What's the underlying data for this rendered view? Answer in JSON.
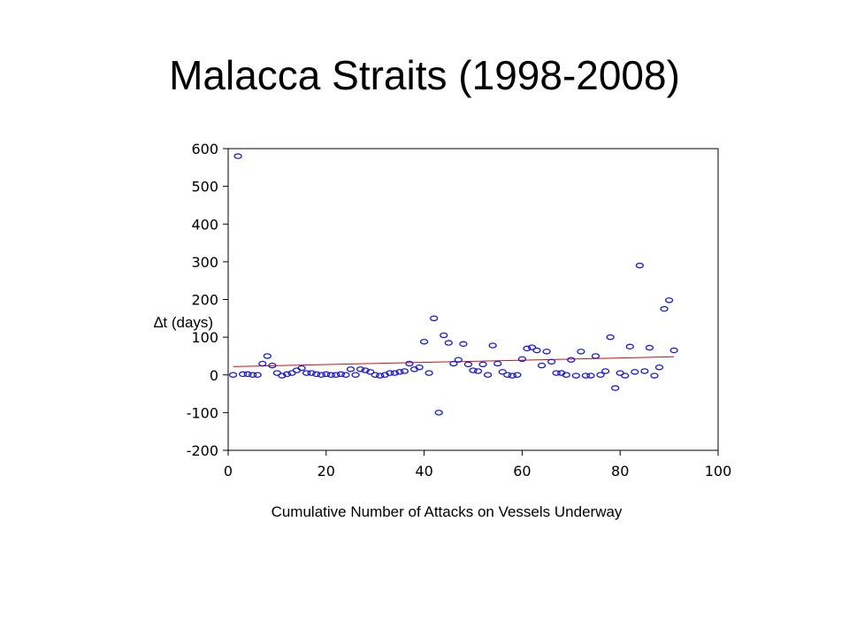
{
  "slide": {
    "title": "Malacca Straits (1998-2008)"
  },
  "colors": {
    "marker": "#1a1acc",
    "trend": "#cc1111",
    "frame": "#000000"
  },
  "chart_data": {
    "type": "scatter",
    "title": "",
    "xlabel": "Cumulative Number of Attacks on Vessels Underway",
    "ylabel": "∆t (days)",
    "xlim": [
      0,
      100
    ],
    "ylim": [
      -200,
      600
    ],
    "xticks": [
      0,
      20,
      40,
      60,
      80,
      100
    ],
    "yticks": [
      600,
      500,
      400,
      300,
      200,
      100,
      0,
      -100,
      -200
    ],
    "grid": false,
    "legend": "none",
    "series": [
      {
        "marker": "circle",
        "points": [
          [
            1,
            0
          ],
          [
            2,
            580
          ],
          [
            3,
            2
          ],
          [
            4,
            2
          ],
          [
            5,
            0
          ],
          [
            6,
            0
          ],
          [
            7,
            30
          ],
          [
            8,
            50
          ],
          [
            9,
            25
          ],
          [
            10,
            5
          ],
          [
            11,
            -2
          ],
          [
            12,
            2
          ],
          [
            13,
            5
          ],
          [
            14,
            12
          ],
          [
            15,
            18
          ],
          [
            16,
            5
          ],
          [
            17,
            5
          ],
          [
            18,
            2
          ],
          [
            19,
            0
          ],
          [
            20,
            2
          ],
          [
            21,
            0
          ],
          [
            22,
            0
          ],
          [
            23,
            2
          ],
          [
            24,
            0
          ],
          [
            25,
            15
          ],
          [
            26,
            0
          ],
          [
            27,
            15
          ],
          [
            28,
            12
          ],
          [
            29,
            8
          ],
          [
            30,
            0
          ],
          [
            31,
            -2
          ],
          [
            32,
            0
          ],
          [
            33,
            5
          ],
          [
            34,
            5
          ],
          [
            35,
            8
          ],
          [
            36,
            10
          ],
          [
            37,
            30
          ],
          [
            38,
            15
          ],
          [
            39,
            20
          ],
          [
            40,
            88
          ],
          [
            41,
            5
          ],
          [
            42,
            150
          ],
          [
            43,
            -100
          ],
          [
            44,
            105
          ],
          [
            45,
            85
          ],
          [
            46,
            30
          ],
          [
            47,
            40
          ],
          [
            48,
            82
          ],
          [
            49,
            28
          ],
          [
            50,
            12
          ],
          [
            51,
            10
          ],
          [
            52,
            28
          ],
          [
            53,
            0
          ],
          [
            54,
            78
          ],
          [
            55,
            30
          ],
          [
            56,
            8
          ],
          [
            57,
            0
          ],
          [
            58,
            -2
          ],
          [
            59,
            0
          ],
          [
            60,
            42
          ],
          [
            61,
            70
          ],
          [
            62,
            73
          ],
          [
            63,
            65
          ],
          [
            64,
            25
          ],
          [
            65,
            62
          ],
          [
            66,
            35
          ],
          [
            67,
            5
          ],
          [
            68,
            5
          ],
          [
            69,
            0
          ],
          [
            70,
            40
          ],
          [
            71,
            -2
          ],
          [
            72,
            62
          ],
          [
            73,
            -2
          ],
          [
            74,
            -2
          ],
          [
            75,
            50
          ],
          [
            76,
            0
          ],
          [
            77,
            10
          ],
          [
            78,
            100
          ],
          [
            79,
            -35
          ],
          [
            80,
            5
          ],
          [
            81,
            -2
          ],
          [
            82,
            75
          ],
          [
            83,
            8
          ],
          [
            84,
            290
          ],
          [
            85,
            10
          ],
          [
            86,
            72
          ],
          [
            87,
            -2
          ],
          [
            88,
            20
          ],
          [
            89,
            175
          ],
          [
            90,
            198
          ],
          [
            91,
            65
          ]
        ]
      }
    ],
    "trendline": {
      "type": "linear",
      "x": [
        1,
        91
      ],
      "y": [
        22,
        48
      ]
    }
  }
}
